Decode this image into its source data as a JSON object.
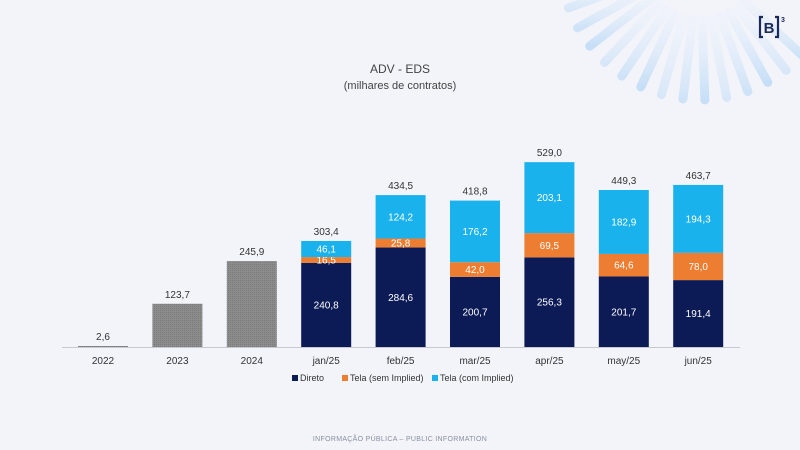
{
  "chart_data": {
    "type": "bar",
    "stacked": true,
    "title": "ADV - EDS",
    "subtitle": "(milhares de contratos)",
    "categories": [
      "2022",
      "2023",
      "2024",
      "jan/25",
      "feb/25",
      "mar/25",
      "apr/25",
      "may/25",
      "jun/25"
    ],
    "annual": {
      "values": [
        2.6,
        123.7,
        245.9
      ],
      "labels": [
        "2,6",
        "123,7",
        "245,9"
      ],
      "color": "#8c8c8c"
    },
    "series": [
      {
        "name": "Direto",
        "color": "#0c1a55",
        "values": [
          null,
          null,
          null,
          240.8,
          284.6,
          200.7,
          256.3,
          201.7,
          191.4
        ],
        "labels": [
          "",
          "",
          "",
          "240,8",
          "284,6",
          "200,7",
          "256,3",
          "201,7",
          "191,4"
        ]
      },
      {
        "name": "Tela (sem Implied)",
        "color": "#ed7d31",
        "values": [
          null,
          null,
          null,
          16.5,
          25.8,
          42.0,
          69.5,
          64.6,
          78.0
        ],
        "labels": [
          "",
          "",
          "",
          "16,5",
          "25,8",
          "42,0",
          "69,5",
          "64,6",
          "78,0"
        ]
      },
      {
        "name": "Tela (com Implied)",
        "color": "#1ab2ec",
        "values": [
          null,
          null,
          null,
          46.1,
          124.2,
          176.2,
          203.1,
          182.9,
          194.3
        ],
        "labels": [
          "",
          "",
          "",
          "46,1",
          "124,2",
          "176,2",
          "203,1",
          "182,9",
          "194,3"
        ]
      }
    ],
    "totals": {
      "values": [
        null,
        null,
        null,
        303.4,
        434.5,
        418.8,
        529.0,
        449.3,
        463.7
      ],
      "labels": [
        "",
        "",
        "",
        "303,4",
        "434,5",
        "418,8",
        "529,0",
        "449,3",
        "463,7"
      ]
    },
    "ylim": [
      0,
      560
    ],
    "grid": false,
    "legend_position": "bottom"
  },
  "footer": "INFORMAÇÃO PÚBLICA – PUBLIC INFORMATION",
  "logo": {
    "text": "B",
    "superscript": "3"
  }
}
